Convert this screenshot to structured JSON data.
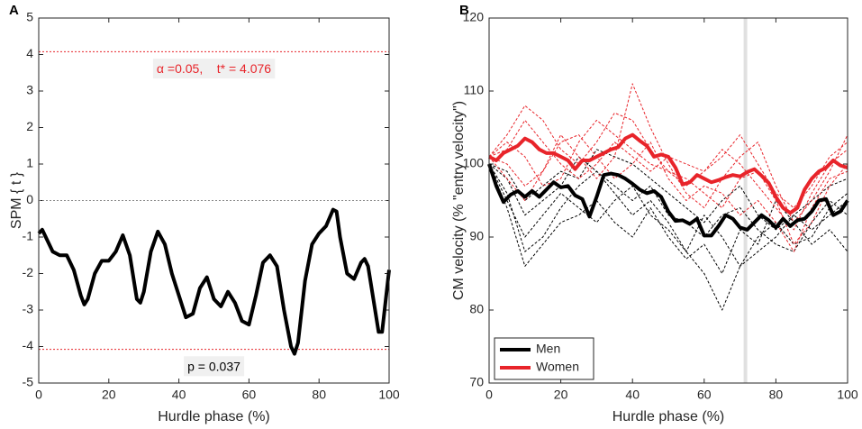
{
  "chart_data": [
    {
      "type": "line",
      "panel_label": "A",
      "xlabel": "Hurdle phase (%)",
      "ylabel": "SPM { t }",
      "xlim": [
        0,
        100
      ],
      "xticks": [
        0,
        20,
        40,
        60,
        80,
        100
      ],
      "ylim": [
        -5,
        5
      ],
      "yticks": [
        -5,
        -4,
        -3,
        -2,
        -1,
        0,
        1,
        2,
        3,
        4,
        5
      ],
      "hlines": [
        {
          "value": 4.076,
          "color": "#e8242a",
          "label": "α =0.05,    t* = 4.076"
        },
        {
          "value": -4.076,
          "color": "#e8242a",
          "label": "p = 0.037"
        },
        {
          "value": 0,
          "color": "#888888"
        }
      ],
      "series": [
        {
          "color": "#000000",
          "width": 4,
          "x": [
            0,
            1,
            2,
            4,
            6,
            8,
            10,
            12,
            13,
            14,
            16,
            18,
            20,
            22,
            24,
            26,
            28,
            29,
            30,
            32,
            34,
            36,
            38,
            40,
            42,
            44,
            46,
            48,
            50,
            52,
            54,
            56,
            58,
            60,
            62,
            64,
            66,
            68,
            70,
            72,
            73,
            74,
            76,
            78,
            80,
            82,
            84,
            85,
            86,
            88,
            90,
            92,
            93,
            94,
            96,
            97,
            98,
            100
          ],
          "values": [
            -0.9,
            -0.8,
            -1.0,
            -1.4,
            -1.5,
            -1.5,
            -1.9,
            -2.6,
            -2.85,
            -2.7,
            -2.0,
            -1.65,
            -1.65,
            -1.4,
            -0.95,
            -1.5,
            -2.7,
            -2.8,
            -2.5,
            -1.4,
            -0.85,
            -1.2,
            -2.0,
            -2.6,
            -3.2,
            -3.1,
            -2.4,
            -2.1,
            -2.7,
            -2.9,
            -2.5,
            -2.8,
            -3.3,
            -3.4,
            -2.6,
            -1.7,
            -1.5,
            -1.8,
            -3.0,
            -4.0,
            -4.2,
            -3.9,
            -2.2,
            -1.2,
            -0.9,
            -0.7,
            -0.25,
            -0.3,
            -1.0,
            -2.0,
            -2.15,
            -1.7,
            -1.6,
            -1.8,
            -3.0,
            -3.6,
            -3.6,
            -1.9
          ]
        }
      ]
    },
    {
      "type": "line",
      "panel_label": "B",
      "xlabel": "Hurdle phase (%)",
      "ylabel": "CM velocity (% \"entry velocity\")",
      "xlim": [
        0,
        100
      ],
      "xticks": [
        0,
        20,
        40,
        60,
        80,
        100
      ],
      "ylim": [
        70,
        120
      ],
      "yticks": [
        70,
        80,
        90,
        100,
        110,
        120
      ],
      "shaded_x": [
        71,
        72
      ],
      "legend": "lower left",
      "series": [
        {
          "color": "#000000",
          "width": 1,
          "dash": true,
          "x": [
            0,
            5,
            10,
            15,
            20,
            25,
            30,
            35,
            40,
            45,
            50,
            55,
            60,
            65,
            70,
            75,
            80,
            85,
            90,
            95,
            100
          ],
          "values": [
            100,
            96,
            88,
            90,
            94,
            97,
            99,
            96,
            93,
            95,
            92,
            88,
            85,
            80,
            86,
            90,
            92,
            89,
            90,
            94,
            96
          ]
        },
        {
          "color": "#000000",
          "width": 1,
          "dash": true,
          "x": [
            0,
            5,
            10,
            15,
            20,
            25,
            30,
            35,
            40,
            45,
            50,
            55,
            60,
            65,
            70,
            75,
            80,
            85,
            90,
            95,
            100
          ],
          "values": [
            100,
            98,
            93,
            95,
            97,
            101,
            99,
            97,
            95,
            97,
            93,
            92,
            90,
            93,
            94,
            91,
            89,
            88,
            92,
            95,
            93
          ]
        },
        {
          "color": "#000000",
          "width": 1,
          "dash": true,
          "x": [
            0,
            5,
            10,
            15,
            20,
            25,
            30,
            35,
            40,
            45,
            50,
            55,
            60,
            65,
            70,
            75,
            80,
            85,
            90,
            95,
            100
          ],
          "values": [
            100,
            94,
            86,
            89,
            92,
            93,
            95,
            92,
            90,
            94,
            90,
            87,
            89,
            85,
            91,
            89,
            95,
            92,
            89,
            91,
            88
          ]
        },
        {
          "color": "#000000",
          "width": 1,
          "dash": true,
          "x": [
            0,
            5,
            10,
            15,
            20,
            25,
            30,
            35,
            40,
            45,
            50,
            55,
            60,
            65,
            70,
            75,
            80,
            85,
            90,
            95,
            100
          ],
          "values": [
            100,
            99,
            95,
            97,
            99,
            98,
            102,
            101,
            100,
            98,
            96,
            94,
            92,
            95,
            97,
            93,
            91,
            93,
            95,
            97,
            98
          ]
        },
        {
          "color": "#000000",
          "width": 1,
          "dash": true,
          "x": [
            0,
            5,
            10,
            15,
            20,
            25,
            30,
            35,
            40,
            45,
            50,
            55,
            60,
            65,
            70,
            75,
            80,
            85,
            90,
            95,
            100
          ],
          "values": [
            100,
            95,
            90,
            93,
            96,
            94,
            92,
            95,
            97,
            93,
            91,
            88,
            93,
            90,
            86,
            88,
            90,
            93,
            91,
            93,
            95
          ]
        },
        {
          "color": "#e8242a",
          "width": 1,
          "dash": true,
          "x": [
            0,
            5,
            10,
            15,
            20,
            25,
            30,
            35,
            40,
            45,
            50,
            55,
            60,
            65,
            70,
            75,
            80,
            85,
            90,
            95,
            100
          ],
          "values": [
            101,
            104,
            108,
            106,
            102,
            100,
            103,
            107,
            106,
            102,
            99,
            97,
            99,
            101,
            104,
            100,
            96,
            94,
            97,
            101,
            103
          ]
        },
        {
          "color": "#e8242a",
          "width": 1,
          "dash": true,
          "x": [
            0,
            5,
            10,
            15,
            20,
            25,
            30,
            35,
            40,
            45,
            50,
            55,
            60,
            65,
            70,
            75,
            80,
            85,
            90,
            95,
            100
          ],
          "values": [
            101,
            100,
            97,
            99,
            104,
            101,
            98,
            101,
            111,
            105,
            100,
            96,
            94,
            98,
            101,
            103,
            97,
            92,
            95,
            99,
            104
          ]
        },
        {
          "color": "#e8242a",
          "width": 1,
          "dash": true,
          "x": [
            0,
            5,
            10,
            15,
            20,
            25,
            30,
            35,
            40,
            45,
            50,
            55,
            60,
            65,
            70,
            75,
            80,
            85,
            90,
            95,
            100
          ],
          "values": [
            101,
            103,
            101,
            97,
            98,
            103,
            106,
            104,
            102,
            100,
            99,
            98,
            96,
            94,
            98,
            99,
            95,
            89,
            92,
            97,
            100
          ]
        },
        {
          "color": "#e8242a",
          "width": 1,
          "dash": true,
          "x": [
            0,
            5,
            10,
            15,
            20,
            25,
            30,
            35,
            40,
            45,
            50,
            55,
            60,
            65,
            70,
            75,
            80,
            85,
            90,
            95,
            100
          ],
          "values": [
            101,
            102,
            106,
            103,
            100,
            98,
            100,
            103,
            101,
            99,
            101,
            100,
            99,
            102,
            100,
            97,
            94,
            91,
            96,
            100,
            102
          ]
        },
        {
          "color": "#e8242a",
          "width": 1,
          "dash": true,
          "x": [
            0,
            5,
            10,
            15,
            20,
            25,
            30,
            35,
            40,
            45,
            50,
            55,
            60,
            65,
            70,
            75,
            80,
            85,
            90,
            95,
            100
          ],
          "values": [
            101,
            98,
            95,
            99,
            103,
            104,
            101,
            98,
            100,
            103,
            98,
            95,
            97,
            96,
            93,
            95,
            92,
            88,
            94,
            98,
            99
          ]
        },
        {
          "name": "Men",
          "color": "#000000",
          "width": 4,
          "x": [
            0,
            2,
            4,
            6,
            8,
            10,
            12,
            14,
            16,
            18,
            20,
            22,
            24,
            26,
            28,
            30,
            32,
            34,
            36,
            38,
            40,
            42,
            44,
            46,
            48,
            50,
            52,
            54,
            56,
            58,
            60,
            62,
            64,
            66,
            68,
            70,
            72,
            74,
            76,
            78,
            80,
            82,
            84,
            86,
            88,
            90,
            92,
            94,
            96,
            98,
            100
          ],
          "values": [
            100,
            97,
            94.8,
            95.8,
            96.3,
            95.5,
            96.3,
            95.5,
            96.5,
            97.5,
            96.8,
            97,
            95.7,
            95.2,
            92.8,
            95.5,
            98.5,
            98.7,
            98.5,
            98,
            97.3,
            96.5,
            96,
            96.3,
            95.5,
            93.5,
            92.2,
            92.3,
            91.8,
            92.5,
            90.2,
            90.2,
            91.5,
            93,
            92.5,
            91.3,
            91,
            92,
            93,
            92.3,
            91.3,
            92.5,
            91.5,
            92.3,
            92.5,
            93.5,
            95,
            95.2,
            93,
            93.5,
            95
          ]
        },
        {
          "name": "Women",
          "color": "#e8242a",
          "width": 4,
          "x": [
            0,
            2,
            4,
            6,
            8,
            10,
            12,
            14,
            16,
            18,
            20,
            22,
            24,
            26,
            28,
            30,
            32,
            34,
            36,
            38,
            40,
            42,
            44,
            46,
            48,
            50,
            52,
            54,
            56,
            58,
            60,
            62,
            64,
            66,
            68,
            70,
            72,
            74,
            76,
            78,
            80,
            82,
            84,
            86,
            88,
            90,
            92,
            94,
            96,
            98,
            100
          ],
          "values": [
            101,
            100.5,
            101.5,
            102,
            102.5,
            103.5,
            103,
            102,
            101.5,
            101.5,
            101,
            100.5,
            99.3,
            100.5,
            100.5,
            101,
            101.5,
            102,
            102.3,
            103.5,
            104,
            103.2,
            102.5,
            101,
            101.3,
            101,
            99.5,
            97.2,
            97.5,
            98.5,
            98,
            97.5,
            97.8,
            98.2,
            98.5,
            98.3,
            98.9,
            99.3,
            98.4,
            97.4,
            95.5,
            94,
            93.3,
            94,
            96.5,
            98,
            99,
            99.5,
            100.5,
            99.8,
            99.5
          ]
        }
      ]
    }
  ]
}
